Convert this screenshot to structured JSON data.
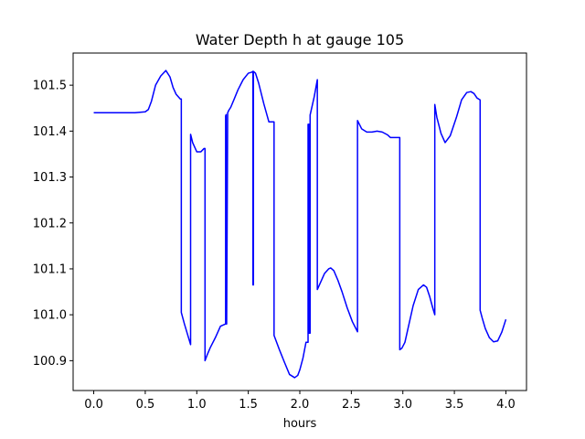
{
  "chart_data": {
    "type": "line",
    "title": "Water Depth h at gauge 105",
    "xlabel": "hours",
    "ylabel": "",
    "xlim": [
      -0.2,
      4.2
    ],
    "ylim": [
      100.835,
      101.57
    ],
    "xticks": [
      0.0,
      0.5,
      1.0,
      1.5,
      2.0,
      2.5,
      3.0,
      3.5,
      4.0
    ],
    "xtick_labels": [
      "0.0",
      "0.5",
      "1.0",
      "1.5",
      "2.0",
      "2.5",
      "3.0",
      "3.5",
      "4.0"
    ],
    "yticks": [
      100.9,
      101.0,
      101.1,
      101.2,
      101.3,
      101.4,
      101.5
    ],
    "ytick_labels": [
      "100.9",
      "101.0",
      "101.1",
      "101.2",
      "101.3",
      "101.4",
      "101.5"
    ],
    "grid": false,
    "series": [
      {
        "color": "#0000ff",
        "x": [
          0.0,
          0.1,
          0.2,
          0.3,
          0.4,
          0.5,
          0.53,
          0.56,
          0.6,
          0.65,
          0.7,
          0.74,
          0.77,
          0.8,
          0.84,
          0.85,
          0.85,
          0.88,
          0.94,
          0.94,
          0.96,
          1.0,
          1.04,
          1.07,
          1.08,
          1.08,
          1.1,
          1.13,
          1.18,
          1.23,
          1.28,
          1.28,
          1.285,
          1.285,
          1.29,
          1.3,
          1.3,
          1.31,
          1.33,
          1.36,
          1.4,
          1.45,
          1.5,
          1.53,
          1.545,
          1.545,
          1.55,
          1.55,
          1.57,
          1.6,
          1.65,
          1.7,
          1.75,
          1.75,
          1.8,
          1.85,
          1.9,
          1.95,
          1.98,
          2.0,
          2.03,
          2.06,
          2.08,
          2.08,
          2.09,
          2.09,
          2.1,
          2.1,
          2.14,
          2.17,
          2.17,
          2.2,
          2.24,
          2.28,
          2.3,
          2.33,
          2.37,
          2.41,
          2.46,
          2.51,
          2.56,
          2.56,
          2.6,
          2.65,
          2.7,
          2.75,
          2.8,
          2.85,
          2.88,
          2.9,
          2.95,
          2.97,
          2.97,
          2.99,
          3.02,
          3.05,
          3.1,
          3.15,
          3.2,
          3.23,
          3.26,
          3.29,
          3.31,
          3.31,
          3.33,
          3.37,
          3.41,
          3.46,
          3.52,
          3.57,
          3.62,
          3.66,
          3.69,
          3.72,
          3.75,
          3.75,
          3.77,
          3.8,
          3.84,
          3.88,
          3.92,
          3.96,
          3.99,
          4.0
        ],
        "y": [
          101.44,
          101.44,
          101.44,
          101.44,
          101.44,
          101.442,
          101.447,
          101.465,
          101.5,
          101.52,
          101.532,
          101.518,
          101.495,
          101.48,
          101.47,
          101.47,
          101.005,
          100.98,
          100.935,
          101.393,
          101.375,
          101.355,
          101.355,
          101.362,
          101.362,
          100.9,
          100.912,
          100.928,
          100.95,
          100.975,
          100.98,
          101.433,
          101.436,
          100.98,
          100.98,
          101.44,
          101.44,
          101.445,
          101.452,
          101.468,
          101.49,
          101.512,
          101.526,
          101.528,
          101.53,
          101.065,
          101.065,
          101.53,
          101.526,
          101.505,
          101.46,
          101.42,
          101.42,
          100.955,
          100.925,
          100.897,
          100.87,
          100.863,
          100.868,
          100.88,
          100.905,
          100.94,
          100.94,
          101.415,
          101.415,
          100.96,
          100.96,
          101.435,
          101.475,
          101.512,
          101.055,
          101.07,
          101.09,
          101.1,
          101.102,
          101.096,
          101.075,
          101.05,
          101.015,
          100.985,
          100.963,
          101.423,
          101.405,
          101.398,
          101.398,
          101.4,
          101.398,
          101.392,
          101.386,
          101.386,
          101.386,
          101.386,
          100.924,
          100.927,
          100.94,
          100.97,
          101.02,
          101.055,
          101.065,
          101.06,
          101.04,
          101.015,
          101.0,
          101.458,
          101.43,
          101.395,
          101.375,
          101.39,
          101.43,
          101.468,
          101.484,
          101.486,
          101.482,
          101.472,
          101.468,
          101.01,
          100.993,
          100.97,
          100.95,
          100.941,
          100.943,
          100.962,
          100.983,
          100.99
        ]
      }
    ]
  }
}
